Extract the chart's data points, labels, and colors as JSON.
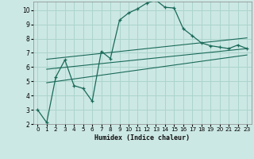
{
  "title": "",
  "xlabel": "Humidex (Indice chaleur)",
  "ylabel": "",
  "background_color": "#cce8e4",
  "grid_color": "#aad4cc",
  "line_color": "#1a6a5a",
  "xlim": [
    -0.5,
    23.5
  ],
  "ylim": [
    2,
    10.6
  ],
  "xticks": [
    0,
    1,
    2,
    3,
    4,
    5,
    6,
    7,
    8,
    9,
    10,
    11,
    12,
    13,
    14,
    15,
    16,
    17,
    18,
    19,
    20,
    21,
    22,
    23
  ],
  "yticks": [
    2,
    3,
    4,
    5,
    6,
    7,
    8,
    9,
    10
  ],
  "main_x": [
    0,
    1,
    2,
    3,
    4,
    5,
    6,
    7,
    8,
    9,
    10,
    11,
    12,
    13,
    14,
    15,
    16,
    17,
    18,
    19,
    20,
    21,
    22,
    23
  ],
  "main_y": [
    3.0,
    2.1,
    5.3,
    6.5,
    4.7,
    4.5,
    3.6,
    7.1,
    6.6,
    9.3,
    9.8,
    10.1,
    10.5,
    10.7,
    10.2,
    10.15,
    8.7,
    8.2,
    7.7,
    7.5,
    7.4,
    7.3,
    7.55,
    7.3
  ],
  "line2_x": [
    1,
    23
  ],
  "line2_y": [
    6.55,
    8.05
  ],
  "line3_x": [
    1,
    23
  ],
  "line3_y": [
    5.85,
    7.3
  ],
  "line4_x": [
    1,
    23
  ],
  "line4_y": [
    4.9,
    6.85
  ]
}
